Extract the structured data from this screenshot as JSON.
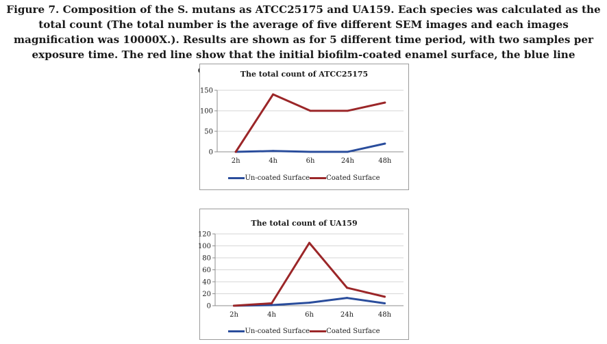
{
  "caption": "Figure 7. Composition of the S. mutans as ATCC25175 and UA159. Each species was calculated as the total count (The total number is the average of five different SEM images and each images magnification was 10000X.). Results are shown as for 5 different time period, with two samples per exposure time. The red line show that the initial biofilm-coated enamel surface, the blue line displayed un-coated biofilm surface.",
  "colors": {
    "uncoated": "#2a4d9c",
    "coated": "#9b2628",
    "grid": "#d6d6d6",
    "axis": "#8c8c8c"
  },
  "chart_data": [
    {
      "type": "line",
      "title": "The total count of ATCC25175",
      "categories": [
        "2h",
        "4h",
        "6h",
        "24h",
        "48h"
      ],
      "ylim": [
        0,
        150
      ],
      "yticks": [
        0,
        50,
        100,
        150
      ],
      "grid": true,
      "legend": "bottom",
      "series": [
        {
          "name": "Un-coated Surface",
          "color_key": "uncoated",
          "values": [
            0,
            2,
            0,
            0,
            20
          ]
        },
        {
          "name": "Coated Surface",
          "color_key": "coated",
          "values": [
            0,
            140,
            100,
            100,
            120
          ]
        }
      ]
    },
    {
      "type": "line",
      "title": "The total count of UA159",
      "categories": [
        "2h",
        "4h",
        "6h",
        "24h",
        "48h"
      ],
      "ylim": [
        0,
        120
      ],
      "yticks": [
        0,
        20,
        40,
        60,
        80,
        100,
        120
      ],
      "grid": true,
      "legend": "bottom",
      "series": [
        {
          "name": "Un-coated Surface",
          "color_key": "uncoated",
          "values": [
            0,
            1,
            5,
            13,
            4
          ]
        },
        {
          "name": "Coated Surface",
          "color_key": "coated",
          "values": [
            0,
            4,
            105,
            30,
            15
          ]
        }
      ]
    }
  ]
}
